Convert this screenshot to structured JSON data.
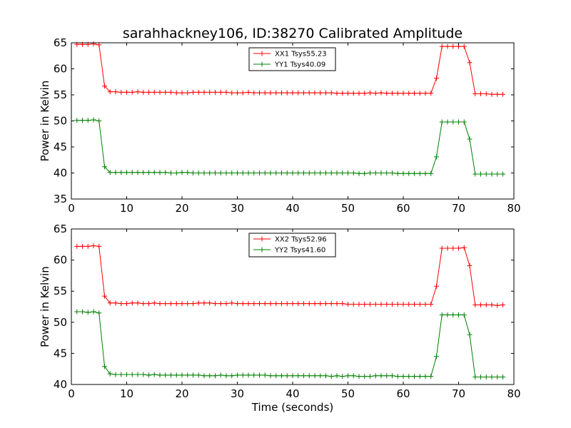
{
  "title": "sarahhackney106, ID:38270 Calibrated Amplitude",
  "chart_data": [
    {
      "type": "line",
      "ylabel": "Power in Kelvin",
      "xlabel": "",
      "xlim": [
        0,
        80
      ],
      "ylim": [
        35,
        65
      ],
      "xticks": [
        "0",
        "10",
        "20",
        "30",
        "40",
        "50",
        "60",
        "70",
        "80"
      ],
      "yticks": [
        "35",
        "40",
        "45",
        "50",
        "55",
        "60",
        "65"
      ],
      "x": [
        1,
        2,
        3,
        4,
        5,
        6,
        7,
        8,
        9,
        10,
        11,
        12,
        13,
        14,
        15,
        16,
        17,
        18,
        19,
        20,
        21,
        22,
        23,
        24,
        25,
        26,
        27,
        28,
        29,
        30,
        31,
        32,
        33,
        34,
        35,
        36,
        37,
        38,
        39,
        40,
        41,
        42,
        43,
        44,
        45,
        46,
        47,
        48,
        49,
        50,
        51,
        52,
        53,
        54,
        55,
        56,
        57,
        58,
        59,
        60,
        61,
        62,
        63,
        64,
        65,
        66,
        67,
        68,
        69,
        70,
        71,
        72,
        73,
        74,
        75,
        76,
        77,
        78
      ],
      "series": [
        {
          "name": "XX1 Tsys55.23",
          "color": "#ff0000",
          "values": [
            64.7,
            64.7,
            64.7,
            64.8,
            64.6,
            56.7,
            55.6,
            55.6,
            55.5,
            55.5,
            55.5,
            55.6,
            55.5,
            55.5,
            55.5,
            55.5,
            55.5,
            55.5,
            55.4,
            55.4,
            55.4,
            55.5,
            55.5,
            55.5,
            55.5,
            55.5,
            55.5,
            55.5,
            55.4,
            55.4,
            55.4,
            55.5,
            55.4,
            55.4,
            55.4,
            55.4,
            55.4,
            55.4,
            55.4,
            55.4,
            55.4,
            55.4,
            55.4,
            55.4,
            55.4,
            55.4,
            55.4,
            55.3,
            55.3,
            55.3,
            55.3,
            55.3,
            55.3,
            55.4,
            55.3,
            55.4,
            55.3,
            55.3,
            55.3,
            55.3,
            55.3,
            55.3,
            55.3,
            55.3,
            55.3,
            58.2,
            64.3,
            64.3,
            64.3,
            64.3,
            64.3,
            61.2,
            55.2,
            55.2,
            55.2,
            55.1,
            55.1,
            55.1
          ]
        },
        {
          "name": "YY1 Tsys40.09",
          "color": "#008000",
          "values": [
            50.1,
            50.1,
            50.1,
            50.2,
            50.0,
            41.2,
            40.1,
            40.1,
            40.1,
            40.1,
            40.1,
            40.1,
            40.1,
            40.1,
            40.1,
            40.1,
            40.1,
            40.0,
            40.0,
            40.1,
            40.1,
            40.0,
            40.0,
            40.0,
            40.0,
            40.0,
            40.0,
            40.0,
            40.0,
            40.0,
            40.0,
            40.0,
            40.0,
            40.0,
            40.0,
            40.0,
            40.0,
            40.0,
            40.0,
            40.0,
            40.0,
            40.0,
            40.0,
            40.0,
            40.0,
            40.0,
            40.0,
            40.0,
            40.0,
            40.0,
            40.0,
            39.9,
            39.9,
            40.0,
            40.0,
            40.0,
            40.0,
            40.0,
            39.9,
            39.9,
            39.9,
            39.9,
            39.9,
            39.9,
            39.9,
            43.1,
            49.8,
            49.8,
            49.8,
            49.8,
            49.8,
            46.5,
            39.8,
            39.8,
            39.8,
            39.8,
            39.8,
            39.8
          ]
        }
      ]
    },
    {
      "type": "line",
      "ylabel": "Power in Kelvin",
      "xlabel": "Time (seconds)",
      "xlim": [
        0,
        80
      ],
      "ylim": [
        40,
        65
      ],
      "xticks": [
        "0",
        "10",
        "20",
        "30",
        "40",
        "50",
        "60",
        "70",
        "80"
      ],
      "yticks": [
        "40",
        "45",
        "50",
        "55",
        "60",
        "65"
      ],
      "x": [
        1,
        2,
        3,
        4,
        5,
        6,
        7,
        8,
        9,
        10,
        11,
        12,
        13,
        14,
        15,
        16,
        17,
        18,
        19,
        20,
        21,
        22,
        23,
        24,
        25,
        26,
        27,
        28,
        29,
        30,
        31,
        32,
        33,
        34,
        35,
        36,
        37,
        38,
        39,
        40,
        41,
        42,
        43,
        44,
        45,
        46,
        47,
        48,
        49,
        50,
        51,
        52,
        53,
        54,
        55,
        56,
        57,
        58,
        59,
        60,
        61,
        62,
        63,
        64,
        65,
        66,
        67,
        68,
        69,
        70,
        71,
        72,
        73,
        74,
        75,
        76,
        77,
        78
      ],
      "series": [
        {
          "name": "XX2 Tsys52.96",
          "color": "#ff0000",
          "values": [
            62.2,
            62.2,
            62.2,
            62.3,
            62.2,
            54.2,
            53.1,
            53.1,
            53.0,
            53.0,
            53.1,
            53.1,
            53.0,
            53.0,
            53.1,
            53.0,
            53.0,
            53.0,
            53.0,
            53.0,
            53.0,
            53.0,
            53.1,
            53.1,
            53.1,
            53.0,
            53.0,
            53.0,
            53.1,
            53.0,
            53.0,
            53.0,
            53.0,
            53.0,
            53.0,
            53.0,
            53.0,
            53.0,
            53.0,
            53.0,
            53.0,
            53.0,
            53.0,
            53.0,
            53.0,
            53.0,
            53.0,
            53.0,
            53.0,
            52.9,
            52.9,
            52.9,
            52.9,
            52.9,
            52.9,
            52.9,
            52.9,
            52.9,
            52.9,
            52.9,
            52.9,
            52.9,
            52.9,
            52.9,
            52.9,
            55.8,
            61.9,
            61.9,
            61.9,
            61.9,
            62.0,
            59.1,
            52.8,
            52.8,
            52.8,
            52.8,
            52.7,
            52.8
          ]
        },
        {
          "name": "YY2 Tsys41.60",
          "color": "#008000",
          "values": [
            51.7,
            51.7,
            51.6,
            51.7,
            51.5,
            42.9,
            41.7,
            41.6,
            41.6,
            41.6,
            41.6,
            41.6,
            41.6,
            41.5,
            41.6,
            41.5,
            41.5,
            41.5,
            41.5,
            41.5,
            41.5,
            41.5,
            41.5,
            41.4,
            41.4,
            41.4,
            41.5,
            41.4,
            41.4,
            41.5,
            41.5,
            41.5,
            41.5,
            41.5,
            41.5,
            41.4,
            41.4,
            41.4,
            41.4,
            41.4,
            41.4,
            41.4,
            41.4,
            41.4,
            41.4,
            41.4,
            41.3,
            41.4,
            41.3,
            41.4,
            41.4,
            41.3,
            41.3,
            41.3,
            41.4,
            41.4,
            41.4,
            41.4,
            41.3,
            41.3,
            41.3,
            41.3,
            41.3,
            41.3,
            41.3,
            44.5,
            51.2,
            51.2,
            51.2,
            51.2,
            51.2,
            48.0,
            41.2,
            41.2,
            41.2,
            41.2,
            41.2,
            41.2
          ]
        }
      ]
    }
  ]
}
